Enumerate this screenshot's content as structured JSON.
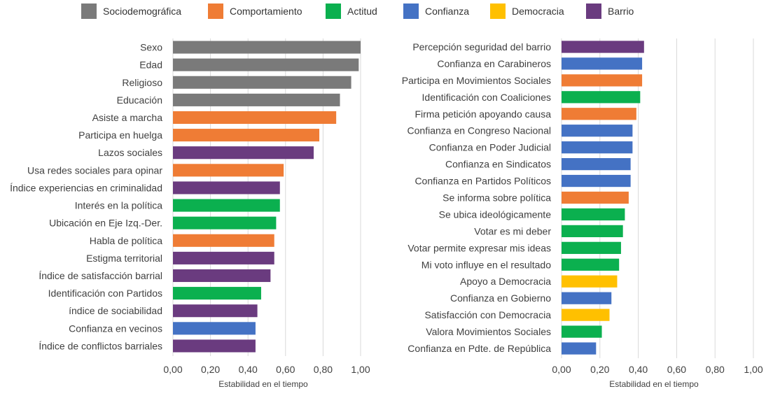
{
  "legend": [
    {
      "label": "Sociodemográfica",
      "color": "#7a7a7a"
    },
    {
      "label": "Comportamiento",
      "color": "#ef7c35"
    },
    {
      "label": "Actitud",
      "color": "#0bb04f"
    },
    {
      "label": "Confianza",
      "color": "#4472c4"
    },
    {
      "label": "Democracia",
      "color": "#ffc000"
    },
    {
      "label": "Barrio",
      "color": "#6a3b7f"
    }
  ],
  "chart_data": [
    {
      "type": "bar",
      "orientation": "horizontal",
      "xlabel": "Estabilidad en el tiempo",
      "xlim": [
        0,
        1
      ],
      "xticks": [
        "0,00",
        "0,20",
        "0,40",
        "0,60",
        "0,80",
        "1,00"
      ],
      "grid": true,
      "bars": [
        {
          "label": "Sexo",
          "value": 1.0,
          "group": "Sociodemográfica"
        },
        {
          "label": "Edad",
          "value": 0.99,
          "group": "Sociodemográfica"
        },
        {
          "label": "Religioso",
          "value": 0.95,
          "group": "Sociodemográfica"
        },
        {
          "label": "Educación",
          "value": 0.89,
          "group": "Sociodemográfica"
        },
        {
          "label": "Asiste a marcha",
          "value": 0.87,
          "group": "Comportamiento"
        },
        {
          "label": "Participa en huelga",
          "value": 0.78,
          "group": "Comportamiento"
        },
        {
          "label": "Lazos sociales",
          "value": 0.75,
          "group": "Barrio"
        },
        {
          "label": "Usa redes sociales para opinar",
          "value": 0.59,
          "group": "Comportamiento"
        },
        {
          "label": "Índice experiencias en criminalidad",
          "value": 0.57,
          "group": "Barrio"
        },
        {
          "label": "Interés en la política",
          "value": 0.57,
          "group": "Actitud"
        },
        {
          "label": "Ubicación en Eje Izq.-Der.",
          "value": 0.55,
          "group": "Actitud"
        },
        {
          "label": "Habla de política",
          "value": 0.54,
          "group": "Comportamiento"
        },
        {
          "label": "Estigma territorial",
          "value": 0.54,
          "group": "Barrio"
        },
        {
          "label": "Índice de satisfacción barrial",
          "value": 0.52,
          "group": "Barrio"
        },
        {
          "label": "Identificación con Partidos",
          "value": 0.47,
          "group": "Actitud"
        },
        {
          "label": "índice de sociabilidad",
          "value": 0.45,
          "group": "Barrio"
        },
        {
          "label": "Confianza en vecinos",
          "value": 0.44,
          "group": "Confianza"
        },
        {
          "label": "Índice de conflictos barriales",
          "value": 0.44,
          "group": "Barrio"
        }
      ]
    },
    {
      "type": "bar",
      "orientation": "horizontal",
      "xlabel": "Estabilidad en el tiempo",
      "xlim": [
        0,
        1
      ],
      "xticks": [
        "0,00",
        "0,20",
        "0,40",
        "0,60",
        "0,80",
        "1,00"
      ],
      "grid": true,
      "bars": [
        {
          "label": "Percepción seguridad del barrio",
          "value": 0.43,
          "group": "Barrio"
        },
        {
          "label": "Confianza en Carabineros",
          "value": 0.42,
          "group": "Confianza"
        },
        {
          "label": "Participa en Movimientos Sociales",
          "value": 0.42,
          "group": "Comportamiento"
        },
        {
          "label": "Identificación con Coaliciones",
          "value": 0.41,
          "group": "Actitud"
        },
        {
          "label": "Firma petición apoyando causa",
          "value": 0.39,
          "group": "Comportamiento"
        },
        {
          "label": "Confianza en Congreso Nacional",
          "value": 0.37,
          "group": "Confianza"
        },
        {
          "label": "Confianza en Poder Judicial",
          "value": 0.37,
          "group": "Confianza"
        },
        {
          "label": "Confianza en Sindicatos",
          "value": 0.36,
          "group": "Confianza"
        },
        {
          "label": "Confianza en Partidos Políticos",
          "value": 0.36,
          "group": "Confianza"
        },
        {
          "label": "Se informa sobre política",
          "value": 0.35,
          "group": "Comportamiento"
        },
        {
          "label": "Se ubica ideológicamente",
          "value": 0.33,
          "group": "Actitud"
        },
        {
          "label": "Votar es mi deber",
          "value": 0.32,
          "group": "Actitud"
        },
        {
          "label": "Votar permite expresar mis ideas",
          "value": 0.31,
          "group": "Actitud"
        },
        {
          "label": "Mi voto influye en el resultado",
          "value": 0.3,
          "group": "Actitud"
        },
        {
          "label": "Apoyo a Democracia",
          "value": 0.29,
          "group": "Democracia"
        },
        {
          "label": "Confianza en Gobierno",
          "value": 0.26,
          "group": "Confianza"
        },
        {
          "label": "Satisfacción con Democracia",
          "value": 0.25,
          "group": "Democracia"
        },
        {
          "label": "Valora Movimientos Sociales",
          "value": 0.21,
          "group": "Actitud"
        },
        {
          "label": "Confianza en Pdte. de  República",
          "value": 0.18,
          "group": "Confianza"
        }
      ]
    }
  ]
}
